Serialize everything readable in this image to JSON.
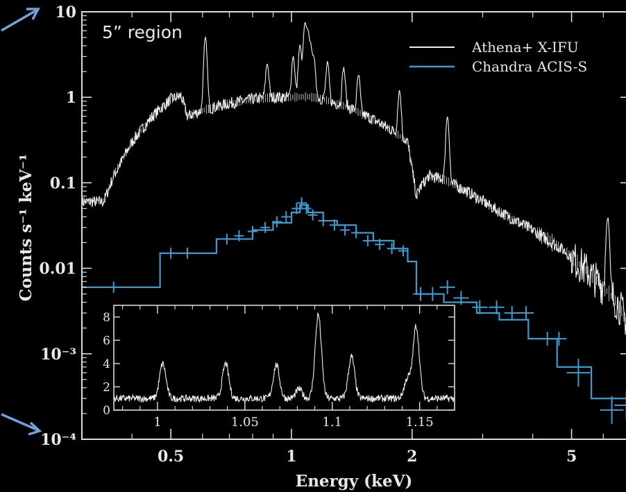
{
  "chart_data": [
    {
      "type": "line",
      "ylabel": "Counts s⁻¹ keV⁻¹",
      "xlabel": "Energy (keV)",
      "xscale": "log",
      "yscale": "log",
      "xlim": [
        0.3,
        7.0
      ],
      "ylim": [
        0.0001,
        10
      ],
      "x_ticks": [
        {
          "value": 0.5,
          "label": "0.5"
        },
        {
          "value": 1,
          "label": "1"
        },
        {
          "value": 2,
          "label": "2"
        },
        {
          "value": 5,
          "label": "5"
        }
      ],
      "y_ticks": [
        {
          "value": 10,
          "label": "10"
        },
        {
          "value": 1,
          "label": "1"
        },
        {
          "value": 0.1,
          "label": "0.1"
        },
        {
          "value": 0.01,
          "label": "0.01"
        },
        {
          "value": 0.001,
          "label": "10⁻³"
        },
        {
          "value": 0.0001,
          "label": "10⁻⁴"
        }
      ],
      "annotation": "5” region",
      "legend": {
        "placement": "top-right"
      },
      "series": [
        {
          "name": "Athena+ X-IFU",
          "color": "#f2f2f2",
          "x": [
            0.3,
            0.34,
            0.36,
            0.4,
            0.45,
            0.5,
            0.53,
            0.55,
            0.6,
            0.7,
            0.8,
            0.9,
            1.0,
            1.1,
            1.2,
            1.4,
            1.6,
            1.8,
            1.95,
            2.05,
            2.1,
            2.2,
            2.4,
            2.8,
            3.2,
            4.0,
            4.8,
            5.5,
            6.0,
            6.5,
            7.0
          ],
          "y": [
            0.06,
            0.06,
            0.12,
            0.3,
            0.6,
            0.95,
            1.05,
            0.6,
            0.7,
            0.85,
            0.95,
            1.0,
            1.0,
            1.02,
            0.95,
            0.75,
            0.55,
            0.4,
            0.3,
            0.07,
            0.09,
            0.12,
            0.11,
            0.075,
            0.05,
            0.028,
            0.016,
            0.009,
            0.006,
            0.004,
            0.002
          ],
          "lines": [
            {
              "x": 0.61,
              "y": 5.0
            },
            {
              "x": 0.87,
              "y": 2.5
            },
            {
              "x": 1.01,
              "y": 3.0
            },
            {
              "x": 1.05,
              "y": 4.0
            },
            {
              "x": 1.08,
              "y": 7.0
            },
            {
              "x": 1.1,
              "y": 5.5
            },
            {
              "x": 1.12,
              "y": 3.5
            },
            {
              "x": 1.14,
              "y": 2.5
            },
            {
              "x": 1.23,
              "y": 2.5
            },
            {
              "x": 1.35,
              "y": 2.2
            },
            {
              "x": 1.47,
              "y": 1.8
            },
            {
              "x": 1.86,
              "y": 1.2
            },
            {
              "x": 2.45,
              "y": 0.6
            },
            {
              "x": 6.15,
              "y": 0.04
            }
          ]
        },
        {
          "name": "Chandra ACIS-S",
          "color": "#3d9bd4",
          "x": [
            0.3,
            0.47,
            0.65,
            0.8,
            0.9,
            1.0,
            1.05,
            1.1,
            1.2,
            1.3,
            1.45,
            1.6,
            1.8,
            1.95,
            2.05,
            2.4,
            2.9,
            3.3,
            3.9,
            4.6,
            5.6,
            7.0
          ],
          "y": [
            0.006,
            0.015,
            0.022,
            0.028,
            0.034,
            0.045,
            0.055,
            0.045,
            0.036,
            0.032,
            0.026,
            0.021,
            0.017,
            0.012,
            0.005,
            0.004,
            0.003,
            0.0025,
            0.0015,
            0.0007,
            0.0003,
            0.00025
          ],
          "error_points": [
            {
              "x": 0.36,
              "y": 0.006
            },
            {
              "x": 0.5,
              "y": 0.015
            },
            {
              "x": 0.55,
              "y": 0.015
            },
            {
              "x": 0.69,
              "y": 0.022
            },
            {
              "x": 0.74,
              "y": 0.024
            },
            {
              "x": 0.8,
              "y": 0.027
            },
            {
              "x": 0.86,
              "y": 0.03
            },
            {
              "x": 0.92,
              "y": 0.035
            },
            {
              "x": 0.97,
              "y": 0.04
            },
            {
              "x": 1.03,
              "y": 0.05
            },
            {
              "x": 1.06,
              "y": 0.058
            },
            {
              "x": 1.09,
              "y": 0.05
            },
            {
              "x": 1.13,
              "y": 0.042
            },
            {
              "x": 1.2,
              "y": 0.036
            },
            {
              "x": 1.28,
              "y": 0.032
            },
            {
              "x": 1.36,
              "y": 0.028
            },
            {
              "x": 1.45,
              "y": 0.026
            },
            {
              "x": 1.55,
              "y": 0.021
            },
            {
              "x": 1.66,
              "y": 0.019
            },
            {
              "x": 1.78,
              "y": 0.017
            },
            {
              "x": 1.9,
              "y": 0.016
            },
            {
              "x": 2.1,
              "y": 0.005
            },
            {
              "x": 2.25,
              "y": 0.005
            },
            {
              "x": 2.45,
              "y": 0.006
            },
            {
              "x": 2.65,
              "y": 0.0045
            },
            {
              "x": 2.95,
              "y": 0.0035
            },
            {
              "x": 3.25,
              "y": 0.0035
            },
            {
              "x": 3.55,
              "y": 0.003
            },
            {
              "x": 3.85,
              "y": 0.003
            },
            {
              "x": 4.35,
              "y": 0.0015
            },
            {
              "x": 4.65,
              "y": 0.0015
            },
            {
              "x": 5.2,
              "y": 0.0006
            },
            {
              "x": 6.3,
              "y": 0.00022
            },
            {
              "x": 6.85,
              "y": 0.00025
            }
          ]
        }
      ]
    },
    {
      "type": "line",
      "xlim": [
        0.975,
        1.17
      ],
      "ylim": [
        0,
        9
      ],
      "x_ticks": [
        {
          "value": 1.0,
          "label": "1"
        },
        {
          "value": 1.05,
          "label": "1.05"
        },
        {
          "value": 1.1,
          "label": "1.1"
        },
        {
          "value": 1.15,
          "label": "1.15"
        }
      ],
      "y_ticks": [
        {
          "value": 0,
          "label": "0"
        },
        {
          "value": 2,
          "label": "2"
        },
        {
          "value": 4,
          "label": "4"
        },
        {
          "value": 6,
          "label": "6"
        },
        {
          "value": 8,
          "label": "8"
        }
      ],
      "baseline": 1.0,
      "peaks": [
        {
          "x": 1.003,
          "y": 4.0
        },
        {
          "x": 1.039,
          "y": 4.0
        },
        {
          "x": 1.068,
          "y": 3.9
        },
        {
          "x": 1.081,
          "y": 1.8
        },
        {
          "x": 1.092,
          "y": 8.2
        },
        {
          "x": 1.111,
          "y": 4.6
        },
        {
          "x": 1.143,
          "y": 2.7
        },
        {
          "x": 1.148,
          "y": 7.2
        }
      ]
    }
  ]
}
